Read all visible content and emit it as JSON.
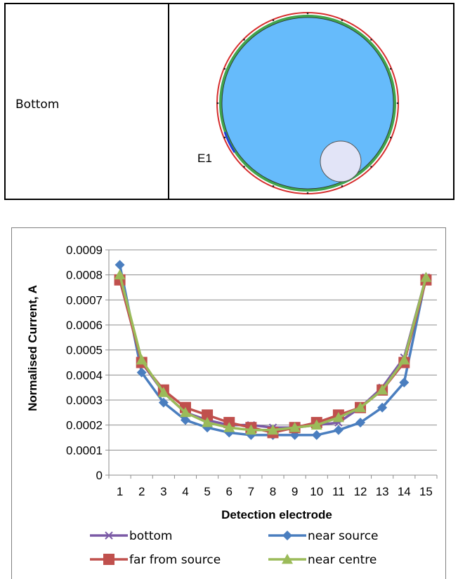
{
  "table": {
    "row_label": "Bottom",
    "electrode_label": "E1"
  },
  "colors": {
    "fluid": "#66bbfb",
    "wall_green": "#3fa34d",
    "wall_red": "#d62e2e",
    "inclusion": "#e2e4f7",
    "electrode_blue": "#1f3fd8"
  },
  "chart_data": {
    "type": "line",
    "x": [
      1,
      2,
      3,
      4,
      5,
      6,
      7,
      8,
      9,
      10,
      11,
      12,
      13,
      14,
      15
    ],
    "ylim": [
      0,
      0.0009
    ],
    "yticks": [
      "0",
      "0.0001",
      "0.0002",
      "0.0003",
      "0.0004",
      "0.0005",
      "0.0006",
      "0.0007",
      "0.0008",
      "0.0009"
    ],
    "xlabel": "Detection electrode",
    "ylabel": "Normalised Current, A",
    "grid": true,
    "legend_position": "bottom",
    "series": [
      {
        "name": "bottom",
        "color": "#7b5aa6",
        "marker": "x",
        "values": [
          0.00078,
          0.00045,
          0.00033,
          0.00025,
          0.00022,
          0.0002,
          0.0002,
          0.00019,
          0.00019,
          0.0002,
          0.00021,
          0.00027,
          0.00035,
          0.00047,
          0.00079
        ]
      },
      {
        "name": "near source",
        "color": "#4a7ebf",
        "marker": "diamond",
        "values": [
          0.00084,
          0.00041,
          0.00029,
          0.00022,
          0.00019,
          0.00017,
          0.00016,
          0.00016,
          0.00016,
          0.00016,
          0.00018,
          0.00021,
          0.00027,
          0.00037,
          0.00079
        ]
      },
      {
        "name": "far from source",
        "color": "#c0504d",
        "marker": "square",
        "values": [
          0.00078,
          0.00045,
          0.00034,
          0.00027,
          0.00024,
          0.00021,
          0.00019,
          0.00017,
          0.00019,
          0.00021,
          0.00024,
          0.00027,
          0.00034,
          0.00045,
          0.00078
        ]
      },
      {
        "name": "near centre",
        "color": "#9bbb59",
        "marker": "triangle",
        "values": [
          0.0008,
          0.00046,
          0.00033,
          0.00025,
          0.00021,
          0.00019,
          0.00018,
          0.00018,
          0.00019,
          0.0002,
          0.00023,
          0.00027,
          0.00034,
          0.00046,
          0.00079
        ]
      }
    ]
  }
}
